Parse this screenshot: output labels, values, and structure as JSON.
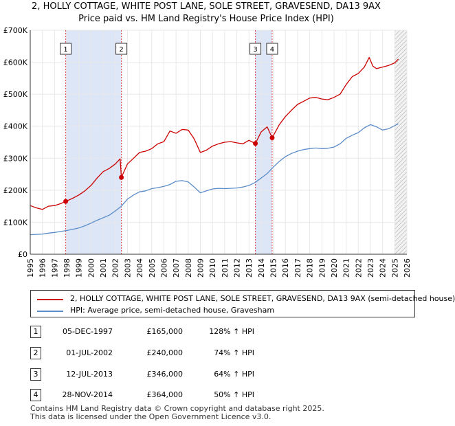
{
  "title_line1": "2, HOLLY COTTAGE, WHITE POST LANE, SOLE STREET, GRAVESEND, DA13 9AX",
  "title_line2": "Price paid vs. HM Land Registry's House Price Index (HPI)",
  "colors": {
    "property": "#cc0000",
    "hpi": "#5b8cc8",
    "shade": "#dde6f7",
    "grid": "#e8e8e8"
  },
  "chart_data": {
    "type": "line",
    "xlim": [
      1995,
      2026
    ],
    "ylim": [
      0,
      700000
    ],
    "x_ticks": [
      "1995",
      "1996",
      "1997",
      "1998",
      "1999",
      "2000",
      "2001",
      "2002",
      "2003",
      "2004",
      "2005",
      "2006",
      "2007",
      "2008",
      "2009",
      "2010",
      "2011",
      "2012",
      "2013",
      "2014",
      "2015",
      "2016",
      "2017",
      "2018",
      "2019",
      "2020",
      "2021",
      "2022",
      "2023",
      "2024",
      "2025",
      "2026"
    ],
    "y_ticks": [
      {
        "value": 0,
        "label": "£0"
      },
      {
        "value": 100000,
        "label": "£100K"
      },
      {
        "value": 200000,
        "label": "£200K"
      },
      {
        "value": 300000,
        "label": "£300K"
      },
      {
        "value": 400000,
        "label": "£400K"
      },
      {
        "value": 500000,
        "label": "£500K"
      },
      {
        "value": 600000,
        "label": "£600K"
      },
      {
        "value": 700000,
        "label": "£700K"
      }
    ],
    "shaded_periods": [
      [
        1997.92,
        2002.5
      ],
      [
        2013.53,
        2014.91
      ]
    ],
    "forecast_start": 2025.0,
    "series": [
      {
        "name": "2, HOLLY COTTAGE, WHITE POST LANE, SOLE STREET, GRAVESEND, DA13 9AX (semi-detached house)",
        "color": "#cc0000",
        "x": [
          1995.0,
          1995.5,
          1996.0,
          1996.5,
          1997.0,
          1997.5,
          1997.92,
          1998.5,
          1999.0,
          1999.5,
          2000.0,
          2000.5,
          2001.0,
          2001.5,
          2002.0,
          2002.4,
          2002.5,
          2003.0,
          2003.5,
          2004.0,
          2004.5,
          2005.0,
          2005.5,
          2006.0,
          2006.5,
          2007.0,
          2007.5,
          2008.0,
          2008.5,
          2009.0,
          2009.5,
          2010.0,
          2010.5,
          2011.0,
          2011.5,
          2012.0,
          2012.5,
          2013.0,
          2013.53,
          2014.0,
          2014.5,
          2014.91,
          2015.5,
          2016.0,
          2016.5,
          2017.0,
          2017.5,
          2018.0,
          2018.5,
          2019.0,
          2019.5,
          2020.0,
          2020.5,
          2021.0,
          2021.5,
          2022.0,
          2022.5,
          2022.9,
          2023.2,
          2023.5,
          2024.0,
          2024.5,
          2025.0,
          2025.3
        ],
        "y": [
          152000,
          145000,
          140000,
          150000,
          152000,
          158000,
          165000,
          175000,
          185000,
          198000,
          215000,
          238000,
          258000,
          268000,
          282000,
          298000,
          240000,
          282000,
          300000,
          318000,
          322000,
          330000,
          345000,
          352000,
          385000,
          378000,
          390000,
          388000,
          360000,
          318000,
          325000,
          338000,
          345000,
          350000,
          352000,
          348000,
          345000,
          356000,
          346000,
          382000,
          398000,
          364000,
          405000,
          430000,
          450000,
          468000,
          478000,
          488000,
          490000,
          485000,
          483000,
          490000,
          500000,
          530000,
          555000,
          565000,
          585000,
          615000,
          588000,
          580000,
          585000,
          590000,
          598000,
          610000
        ]
      },
      {
        "name": "HPI: Average price, semi-detached house, Gravesham",
        "color": "#5b8cc8",
        "x": [
          1995.0,
          1995.5,
          1996.0,
          1996.5,
          1997.0,
          1997.5,
          1998.0,
          1998.5,
          1999.0,
          1999.5,
          2000.0,
          2000.5,
          2001.0,
          2001.5,
          2002.0,
          2002.5,
          2003.0,
          2003.5,
          2004.0,
          2004.5,
          2005.0,
          2005.5,
          2006.0,
          2006.5,
          2007.0,
          2007.5,
          2008.0,
          2008.5,
          2009.0,
          2009.5,
          2010.0,
          2010.5,
          2011.0,
          2011.5,
          2012.0,
          2012.5,
          2013.0,
          2013.5,
          2014.0,
          2014.5,
          2015.0,
          2015.5,
          2016.0,
          2016.5,
          2017.0,
          2017.5,
          2018.0,
          2018.5,
          2019.0,
          2019.5,
          2020.0,
          2020.5,
          2021.0,
          2021.5,
          2022.0,
          2022.5,
          2023.0,
          2023.5,
          2024.0,
          2024.5,
          2025.0,
          2025.3
        ],
        "y": [
          61000,
          62000,
          63000,
          66000,
          68000,
          71000,
          74000,
          78000,
          82000,
          89000,
          97000,
          106000,
          114000,
          122000,
          135000,
          150000,
          172000,
          185000,
          195000,
          198000,
          205000,
          208000,
          212000,
          218000,
          228000,
          230000,
          226000,
          210000,
          192000,
          198000,
          204000,
          206000,
          205000,
          206000,
          207000,
          210000,
          215000,
          224000,
          238000,
          252000,
          272000,
          290000,
          305000,
          315000,
          322000,
          327000,
          330000,
          332000,
          330000,
          331000,
          335000,
          345000,
          362000,
          372000,
          380000,
          395000,
          405000,
          398000,
          388000,
          392000,
          402000,
          408000
        ]
      }
    ],
    "sales": [
      {
        "label": "1",
        "x": 1997.92,
        "y": 165000
      },
      {
        "label": "2",
        "x": 2002.5,
        "y": 240000
      },
      {
        "label": "3",
        "x": 2013.53,
        "y": 346000
      },
      {
        "label": "4",
        "x": 2014.91,
        "y": 364000
      }
    ]
  },
  "legend": {
    "property_label": "2, HOLLY COTTAGE, WHITE POST LANE, SOLE STREET, GRAVESEND, DA13 9AX (semi-detached house)",
    "hpi_label": "HPI: Average price, semi-detached house, Gravesham"
  },
  "transactions": [
    {
      "num": "1",
      "date": "05-DEC-1997",
      "price": "£165,000",
      "pct": "128% ↑ HPI"
    },
    {
      "num": "2",
      "date": "01-JUL-2002",
      "price": "£240,000",
      "pct": "74% ↑ HPI"
    },
    {
      "num": "3",
      "date": "12-JUL-2013",
      "price": "£346,000",
      "pct": "64% ↑ HPI"
    },
    {
      "num": "4",
      "date": "28-NOV-2014",
      "price": "£364,000",
      "pct": "50% ↑ HPI"
    }
  ],
  "footer": {
    "line1": "Contains HM Land Registry data © Crown copyright and database right 2025.",
    "line2": "This data is licensed under the Open Government Licence v3.0."
  }
}
